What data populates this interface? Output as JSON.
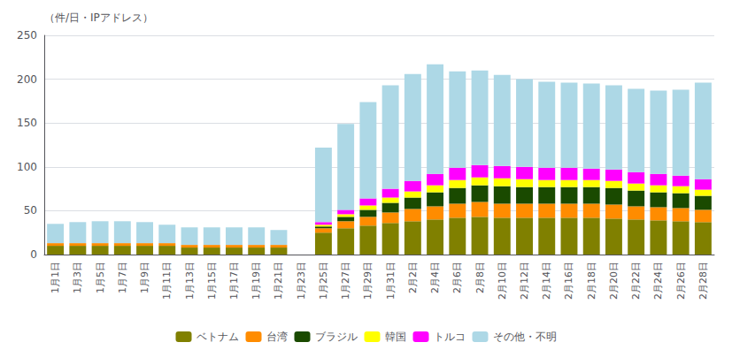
{
  "chart_data": {
    "type": "bar",
    "ylabel": "（件/日・IPアドレス）",
    "categories": [
      "1月1日",
      "1月3日",
      "1月5日",
      "1月7日",
      "1月9日",
      "1月11日",
      "1月13日",
      "1月15日",
      "1月17日",
      "1月19日",
      "1月21日",
      "1月23日",
      "1月25日",
      "1月27日",
      "1月29日",
      "1月31日",
      "2月2日",
      "2月4日",
      "2月6日",
      "2月8日",
      "2月10日",
      "2月12日",
      "2月14日",
      "2月16日",
      "2月18日",
      "2月20日",
      "2月22日",
      "2月24日",
      "2月26日",
      "2月28日"
    ],
    "series": [
      {
        "name": "ベトナム",
        "color": "#808000",
        "values": [
          10,
          10,
          10,
          10,
          10,
          10,
          8,
          8,
          8,
          8,
          8,
          0,
          25,
          30,
          33,
          36,
          38,
          40,
          42,
          43,
          42,
          42,
          42,
          42,
          42,
          41,
          40,
          39,
          38,
          37
        ]
      },
      {
        "name": "台湾",
        "color": "#FF8C00",
        "values": [
          3,
          3,
          3,
          3,
          3,
          3,
          3,
          3,
          3,
          3,
          3,
          0,
          5,
          8,
          10,
          12,
          14,
          15,
          16,
          17,
          16,
          16,
          16,
          16,
          16,
          16,
          15,
          15,
          15,
          14
        ]
      },
      {
        "name": "ブラジル",
        "color": "#1a4a00",
        "values": [
          0,
          0,
          0,
          0,
          0,
          0,
          0,
          0,
          0,
          0,
          0,
          0,
          2,
          5,
          8,
          11,
          13,
          16,
          18,
          19,
          20,
          19,
          19,
          19,
          19,
          19,
          18,
          17,
          17,
          16
        ]
      },
      {
        "name": "韓国",
        "color": "#FFFF00",
        "values": [
          0,
          0,
          0,
          0,
          0,
          0,
          0,
          0,
          0,
          0,
          0,
          0,
          2,
          3,
          5,
          6,
          7,
          8,
          9,
          9,
          9,
          9,
          8,
          8,
          8,
          8,
          8,
          8,
          8,
          7
        ]
      },
      {
        "name": "トルコ",
        "color": "#FF00FF",
        "values": [
          0,
          0,
          0,
          0,
          0,
          0,
          0,
          0,
          0,
          0,
          0,
          0,
          3,
          5,
          8,
          10,
          12,
          13,
          14,
          14,
          14,
          14,
          14,
          14,
          13,
          13,
          13,
          13,
          12,
          12
        ]
      },
      {
        "name": "その他・不明",
        "color": "#ADD8E6",
        "values": [
          22,
          24,
          25,
          25,
          24,
          21,
          20,
          20,
          20,
          20,
          17,
          0,
          85,
          98,
          110,
          118,
          122,
          125,
          110,
          108,
          104,
          100,
          98,
          97,
          97,
          96,
          95,
          95,
          98,
          110
        ]
      }
    ],
    "ylim": [
      0,
      250
    ],
    "yticks": [
      0,
      50,
      100,
      150,
      200,
      250
    ],
    "stacked": true,
    "grid": true,
    "legend": "bottom"
  }
}
